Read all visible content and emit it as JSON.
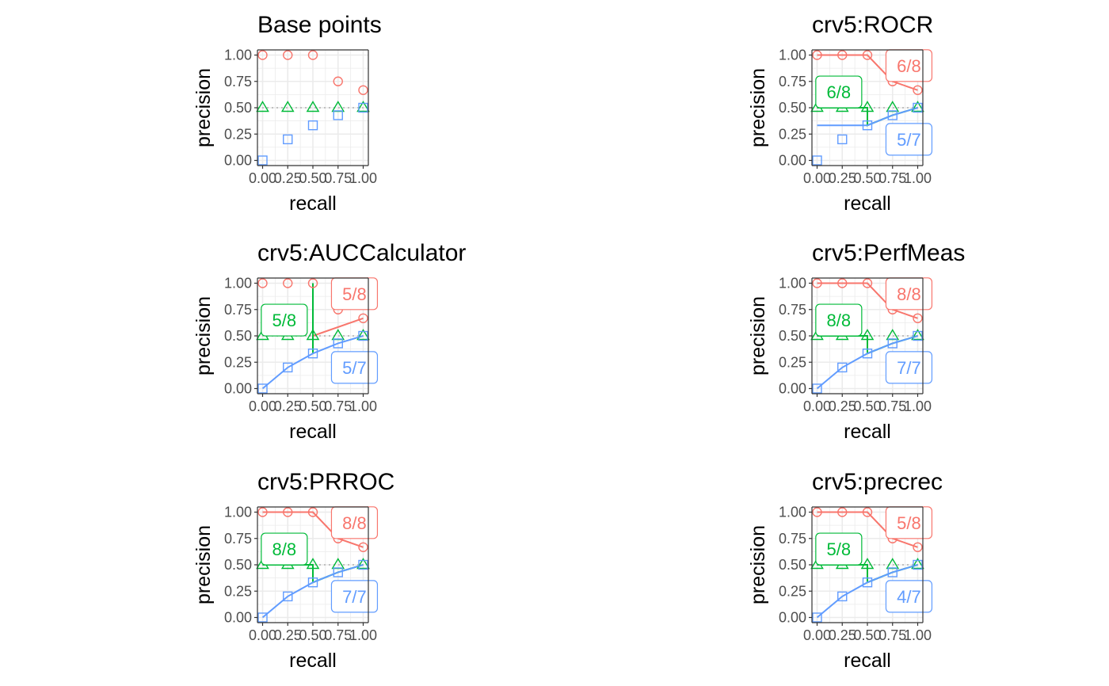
{
  "colors": {
    "c1": "#F8766D",
    "c2": "#00BA38",
    "c3": "#619CFF",
    "grid": "#ebebeb",
    "refline": "#c0c0c0",
    "axis": "#333333"
  },
  "chart_data": [
    {
      "type": "scatter",
      "title": "Base points",
      "xlabel": "recall",
      "ylabel": "precision",
      "xlim": [
        0,
        1
      ],
      "ylim": [
        0,
        1
      ],
      "x_ticks": [
        "0.00",
        "0.25",
        "0.50",
        "0.75",
        "1.00"
      ],
      "y_ticks": [
        "0.00",
        "0.25",
        "0.50",
        "0.75",
        "1.00"
      ],
      "grid": true,
      "baseline": 0.5,
      "series": [
        {
          "color_key": "c1",
          "marker": "circle",
          "points": [
            [
              0,
              1
            ],
            [
              0.25,
              1
            ],
            [
              0.5,
              1
            ],
            [
              0.75,
              0.75
            ],
            [
              1,
              0.667
            ]
          ]
        },
        {
          "color_key": "c2",
          "marker": "triangle",
          "points": [
            [
              0,
              0.5
            ],
            [
              0.25,
              0.5
            ],
            [
              0.5,
              0.5
            ],
            [
              0.75,
              0.5
            ],
            [
              1,
              0.5
            ]
          ]
        },
        {
          "color_key": "c3",
          "marker": "square",
          "points": [
            [
              0,
              0
            ],
            [
              0.25,
              0.2
            ],
            [
              0.5,
              0.333
            ],
            [
              0.75,
              0.429
            ],
            [
              1,
              0.5
            ]
          ]
        }
      ],
      "labels": []
    },
    {
      "type": "line",
      "title": "crv5:ROCR",
      "xlabel": "recall",
      "ylabel": "precision",
      "xlim": [
        0,
        1
      ],
      "ylim": [
        0,
        1
      ],
      "x_ticks": [
        "0.00",
        "0.25",
        "0.50",
        "0.75",
        "1.00"
      ],
      "y_ticks": [
        "0.00",
        "0.25",
        "0.50",
        "0.75",
        "1.00"
      ],
      "grid": true,
      "baseline": 0.5,
      "series": [
        {
          "color_key": "c1",
          "marker": "circle",
          "points": [
            [
              0,
              1
            ],
            [
              0.25,
              1
            ],
            [
              0.5,
              1
            ],
            [
              0.75,
              0.75
            ],
            [
              1,
              0.667
            ]
          ],
          "lines": [
            [
              [
                0,
                1
              ],
              [
                0.5,
                1
              ],
              [
                0.75,
                0.75
              ],
              [
                1,
                0.667
              ]
            ]
          ]
        },
        {
          "color_key": "c2",
          "marker": "triangle",
          "points": [
            [
              0,
              0.5
            ],
            [
              0.25,
              0.5
            ],
            [
              0.5,
              0.5
            ],
            [
              0.75,
              0.5
            ],
            [
              1,
              0.5
            ]
          ],
          "lines": [
            [
              [
                0,
                0.5
              ],
              [
                0.5,
                0.5
              ],
              [
                0.5,
                0.333
              ],
              [
                0.75,
                0.429
              ],
              [
                1,
                0.5
              ]
            ]
          ]
        },
        {
          "color_key": "c3",
          "marker": "square",
          "points": [
            [
              0,
              0
            ],
            [
              0.25,
              0.2
            ],
            [
              0.5,
              0.333
            ],
            [
              0.75,
              0.429
            ],
            [
              1,
              0.5
            ]
          ],
          "lines": [
            [
              [
                0,
                0.333
              ],
              [
                0.5,
                0.333
              ],
              [
                0.75,
                0.429
              ],
              [
                1,
                0.5
              ]
            ]
          ]
        }
      ],
      "labels": [
        {
          "text": "6/8",
          "color_key": "c1",
          "x": 0.85,
          "y": 0.9
        },
        {
          "text": "6/8",
          "color_key": "c2",
          "x": 0.05,
          "y": 0.65
        },
        {
          "text": "5/7",
          "color_key": "c3",
          "x": 0.85,
          "y": 0.2
        }
      ]
    },
    {
      "type": "line",
      "title": "crv5:AUCCalculator",
      "xlabel": "recall",
      "ylabel": "precision",
      "xlim": [
        0,
        1
      ],
      "ylim": [
        0,
        1
      ],
      "x_ticks": [
        "0.00",
        "0.25",
        "0.50",
        "0.75",
        "1.00"
      ],
      "y_ticks": [
        "0.00",
        "0.25",
        "0.50",
        "0.75",
        "1.00"
      ],
      "grid": true,
      "baseline": 0.5,
      "series": [
        {
          "color_key": "c1",
          "marker": "circle",
          "points": [
            [
              0,
              1
            ],
            [
              0.25,
              1
            ],
            [
              0.5,
              1
            ],
            [
              0.75,
              0.75
            ],
            [
              1,
              0.667
            ]
          ],
          "lines": [
            [
              [
                0.5,
                0.5
              ],
              [
                1,
                0.667
              ]
            ]
          ]
        },
        {
          "color_key": "c2",
          "marker": "triangle",
          "points": [
            [
              0,
              0.5
            ],
            [
              0.25,
              0.5
            ],
            [
              0.5,
              0.5
            ],
            [
              0.75,
              0.5
            ],
            [
              1,
              0.5
            ]
          ],
          "lines": [
            [
              [
                0.5,
                0.333
              ],
              [
                0.5,
                1
              ]
            ]
          ]
        },
        {
          "color_key": "c3",
          "marker": "square",
          "points": [
            [
              0,
              0
            ],
            [
              0.25,
              0.2
            ],
            [
              0.5,
              0.333
            ],
            [
              0.75,
              0.429
            ],
            [
              1,
              0.5
            ]
          ],
          "lines": [
            [
              [
                0,
                0
              ],
              [
                0.25,
                0.2
              ],
              [
                0.5,
                0.333
              ],
              [
                0.75,
                0.429
              ],
              [
                1,
                0.5
              ]
            ]
          ]
        }
      ],
      "labels": [
        {
          "text": "5/8",
          "color_key": "c1",
          "x": 0.85,
          "y": 0.9
        },
        {
          "text": "5/8",
          "color_key": "c2",
          "x": 0.05,
          "y": 0.65
        },
        {
          "text": "5/7",
          "color_key": "c3",
          "x": 0.85,
          "y": 0.2
        }
      ]
    },
    {
      "type": "line",
      "title": "crv5:PerfMeas",
      "xlabel": "recall",
      "ylabel": "precision",
      "xlim": [
        0,
        1
      ],
      "ylim": [
        0,
        1
      ],
      "x_ticks": [
        "0.00",
        "0.25",
        "0.50",
        "0.75",
        "1.00"
      ],
      "y_ticks": [
        "0.00",
        "0.25",
        "0.50",
        "0.75",
        "1.00"
      ],
      "grid": true,
      "baseline": 0.5,
      "series": [
        {
          "color_key": "c1",
          "marker": "circle",
          "points": [
            [
              0,
              1
            ],
            [
              0.25,
              1
            ],
            [
              0.5,
              1
            ],
            [
              0.75,
              0.75
            ],
            [
              1,
              0.667
            ]
          ],
          "lines": [
            [
              [
                0,
                1
              ],
              [
                0.5,
                1
              ],
              [
                0.75,
                0.75
              ],
              [
                1,
                0.667
              ]
            ]
          ]
        },
        {
          "color_key": "c2",
          "marker": "triangle",
          "points": [
            [
              0,
              0.5
            ],
            [
              0.25,
              0.5
            ],
            [
              0.5,
              0.5
            ],
            [
              0.75,
              0.5
            ],
            [
              1,
              0.5
            ]
          ],
          "lines": [
            [
              [
                0,
                0.5
              ],
              [
                0.5,
                0.5
              ],
              [
                0.5,
                0.333
              ],
              [
                0.75,
                0.429
              ],
              [
                1,
                0.5
              ]
            ]
          ]
        },
        {
          "color_key": "c3",
          "marker": "square",
          "points": [
            [
              0,
              0
            ],
            [
              0.25,
              0.2
            ],
            [
              0.5,
              0.333
            ],
            [
              0.75,
              0.429
            ],
            [
              1,
              0.5
            ]
          ],
          "lines": [
            [
              [
                0,
                0
              ],
              [
                0.25,
                0.2
              ],
              [
                0.5,
                0.333
              ],
              [
                0.75,
                0.429
              ],
              [
                1,
                0.5
              ]
            ]
          ]
        }
      ],
      "labels": [
        {
          "text": "8/8",
          "color_key": "c1",
          "x": 0.85,
          "y": 0.9
        },
        {
          "text": "8/8",
          "color_key": "c2",
          "x": 0.05,
          "y": 0.65
        },
        {
          "text": "7/7",
          "color_key": "c3",
          "x": 0.85,
          "y": 0.2
        }
      ]
    },
    {
      "type": "line",
      "title": "crv5:PRROC",
      "xlabel": "recall",
      "ylabel": "precision",
      "xlim": [
        0,
        1
      ],
      "ylim": [
        0,
        1
      ],
      "x_ticks": [
        "0.00",
        "0.25",
        "0.50",
        "0.75",
        "1.00"
      ],
      "y_ticks": [
        "0.00",
        "0.25",
        "0.50",
        "0.75",
        "1.00"
      ],
      "grid": true,
      "baseline": 0.5,
      "series": [
        {
          "color_key": "c1",
          "marker": "circle",
          "points": [
            [
              0,
              1
            ],
            [
              0.25,
              1
            ],
            [
              0.5,
              1
            ],
            [
              0.75,
              0.75
            ],
            [
              1,
              0.667
            ]
          ],
          "lines": [
            [
              [
                0,
                1
              ],
              [
                0.5,
                1
              ],
              [
                0.75,
                0.75
              ],
              [
                1,
                0.667
              ]
            ]
          ]
        },
        {
          "color_key": "c2",
          "marker": "triangle",
          "points": [
            [
              0,
              0.5
            ],
            [
              0.25,
              0.5
            ],
            [
              0.5,
              0.5
            ],
            [
              0.75,
              0.5
            ],
            [
              1,
              0.5
            ]
          ],
          "lines": [
            [
              [
                0,
                0.5
              ],
              [
                0.5,
                0.5
              ],
              [
                0.5,
                0.333
              ],
              [
                0.75,
                0.429
              ],
              [
                1,
                0.5
              ]
            ]
          ]
        },
        {
          "color_key": "c3",
          "marker": "square",
          "points": [
            [
              0,
              0
            ],
            [
              0.25,
              0.2
            ],
            [
              0.5,
              0.333
            ],
            [
              0.75,
              0.429
            ],
            [
              1,
              0.5
            ]
          ],
          "lines": [
            [
              [
                0,
                0
              ],
              [
                0.25,
                0.2
              ],
              [
                0.5,
                0.333
              ],
              [
                0.75,
                0.429
              ],
              [
                1,
                0.5
              ]
            ]
          ]
        }
      ],
      "labels": [
        {
          "text": "8/8",
          "color_key": "c1",
          "x": 0.85,
          "y": 0.9
        },
        {
          "text": "8/8",
          "color_key": "c2",
          "x": 0.05,
          "y": 0.65
        },
        {
          "text": "7/7",
          "color_key": "c3",
          "x": 0.85,
          "y": 0.2
        }
      ]
    },
    {
      "type": "line",
      "title": "crv5:precrec",
      "xlabel": "recall",
      "ylabel": "precision",
      "xlim": [
        0,
        1
      ],
      "ylim": [
        0,
        1
      ],
      "x_ticks": [
        "0.00",
        "0.25",
        "0.50",
        "0.75",
        "1.00"
      ],
      "y_ticks": [
        "0.00",
        "0.25",
        "0.50",
        "0.75",
        "1.00"
      ],
      "grid": true,
      "baseline": 0.5,
      "series": [
        {
          "color_key": "c1",
          "marker": "circle",
          "points": [
            [
              0,
              1
            ],
            [
              0.25,
              1
            ],
            [
              0.5,
              1
            ],
            [
              0.75,
              0.75
            ],
            [
              1,
              0.667
            ]
          ],
          "lines": [
            [
              [
                0,
                1
              ],
              [
                0.5,
                1
              ],
              [
                0.75,
                0.75
              ],
              [
                1,
                0.667
              ]
            ]
          ]
        },
        {
          "color_key": "c2",
          "marker": "triangle",
          "points": [
            [
              0,
              0.5
            ],
            [
              0.25,
              0.5
            ],
            [
              0.5,
              0.5
            ],
            [
              0.75,
              0.5
            ],
            [
              1,
              0.5
            ]
          ],
          "lines": [
            [
              [
                0,
                0.5
              ],
              [
                0.5,
                0.5
              ],
              [
                0.5,
                0.333
              ],
              [
                0.75,
                0.429
              ],
              [
                1,
                0.5
              ]
            ]
          ]
        },
        {
          "color_key": "c3",
          "marker": "square",
          "points": [
            [
              0,
              0
            ],
            [
              0.25,
              0.2
            ],
            [
              0.5,
              0.333
            ],
            [
              0.75,
              0.429
            ],
            [
              1,
              0.5
            ]
          ],
          "lines": [
            [
              [
                0,
                0
              ],
              [
                0.25,
                0.2
              ],
              [
                0.5,
                0.333
              ],
              [
                0.75,
                0.429
              ],
              [
                1,
                0.5
              ]
            ]
          ]
        }
      ],
      "labels": [
        {
          "text": "5/8",
          "color_key": "c1",
          "x": 0.85,
          "y": 0.9
        },
        {
          "text": "5/8",
          "color_key": "c2",
          "x": 0.05,
          "y": 0.65
        },
        {
          "text": "4/7",
          "color_key": "c3",
          "x": 0.85,
          "y": 0.2
        }
      ]
    }
  ]
}
